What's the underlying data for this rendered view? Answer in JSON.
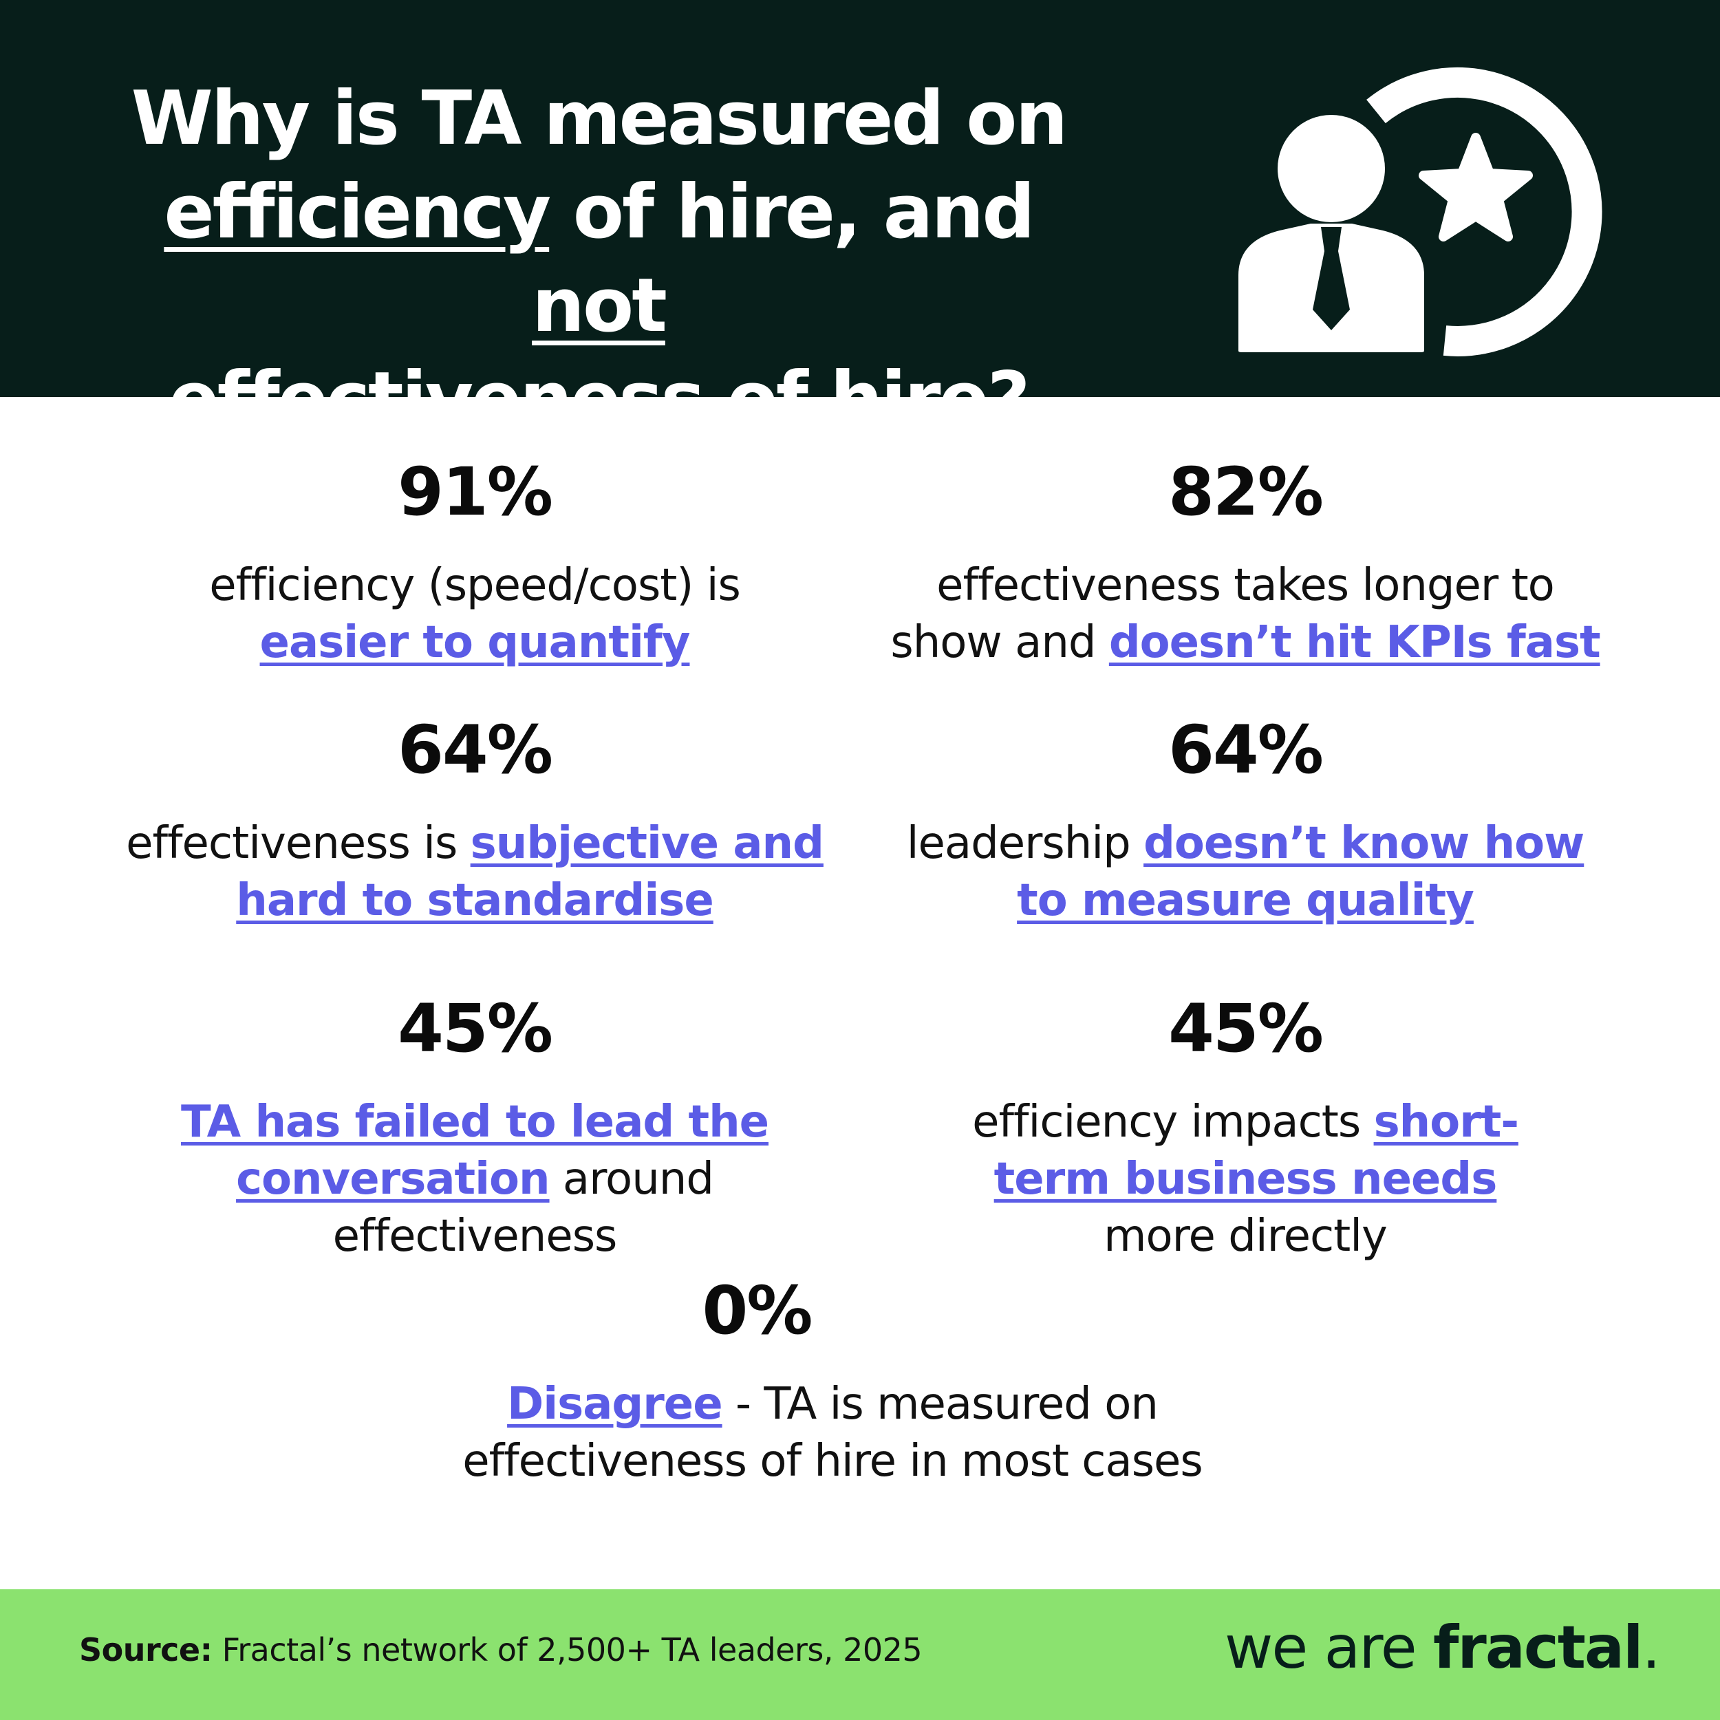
{
  "header": {
    "title_line1": "Why is TA measured on",
    "title_line2_u1": "efficiency",
    "title_line2_mid": " of hire, and ",
    "title_line2_u2": "not",
    "title_line3_u": "effectiveness",
    "title_line3_rest": " of hire?",
    "icon": "person-star-refresh-icon"
  },
  "stats": [
    {
      "pct": "91%",
      "line1_plain": "efficiency (speed/cost) is",
      "line2_hl": "easier to quantify"
    },
    {
      "pct": "82%",
      "line1_plain": "effectiveness takes longer to",
      "line2_plain": "show and ",
      "line2_hl": "doesn’t hit KPIs fast"
    },
    {
      "pct": "64%",
      "line1_plain": "effectiveness is ",
      "line1_hl": "subjective and",
      "line2_hl": "hard to standardise"
    },
    {
      "pct": "64%",
      "line1_plain": "leadership ",
      "line1_hl": "doesn’t know how",
      "line2_hl": "to measure quality"
    },
    {
      "pct": "45%",
      "line1_hl": "TA has failed to lead the",
      "line2_hl": "conversation",
      "line2_plain": " around",
      "line3_plain": "effectiveness"
    },
    {
      "pct": "45%",
      "line1_plain": "efficiency impacts ",
      "line1_hl": "short-",
      "line2_hl": "term business needs",
      "line3_plain": "more directly"
    },
    {
      "pct": "0%",
      "line1_hl": "Disagree",
      "line1_plain": " - TA is measured on",
      "line2_plain": "effectiveness of hire in most cases"
    }
  ],
  "footer": {
    "source_label": "Source:",
    "source_text": " Fractal’s network of 2,500+ TA leaders, 2025",
    "brand_light": "we are ",
    "brand_bold": "fractal",
    "brand_dot": "."
  },
  "colors": {
    "header_bg": "#071e1a",
    "highlight": "#5b5ce6",
    "footer_bg": "#8be26f"
  }
}
